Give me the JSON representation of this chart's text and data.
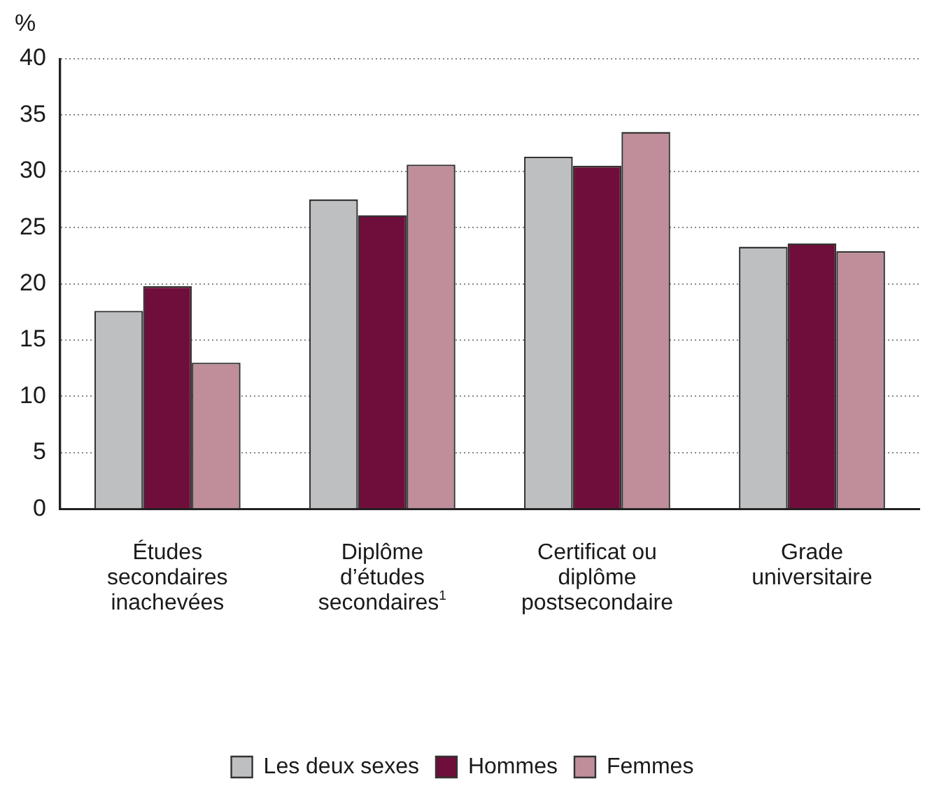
{
  "chart_data": {
    "type": "bar",
    "ylabel": "%",
    "categories": [
      "Études secondaires inachevées",
      "Diplôme d’études secondaires$^{1}$",
      "Certificat ou diplôme postsecondaire",
      "Grade universitaire"
    ],
    "series": [
      {
        "name": "Les deux sexes",
        "color": "#bebfc1",
        "values": [
          17.6,
          27.5,
          31.3,
          23.3
        ]
      },
      {
        "name": "Hommes",
        "color": "#700e3b",
        "values": [
          19.8,
          26.1,
          30.5,
          23.6
        ]
      },
      {
        "name": "Femmes",
        "color": "#bf8e9a",
        "values": [
          13.0,
          30.6,
          33.5,
          22.9
        ]
      }
    ],
    "ylim": [
      0,
      40
    ],
    "yticks": [
      0,
      5,
      10,
      15,
      20,
      25,
      30,
      35,
      40
    ],
    "grid": "y",
    "legend": "bottom"
  }
}
